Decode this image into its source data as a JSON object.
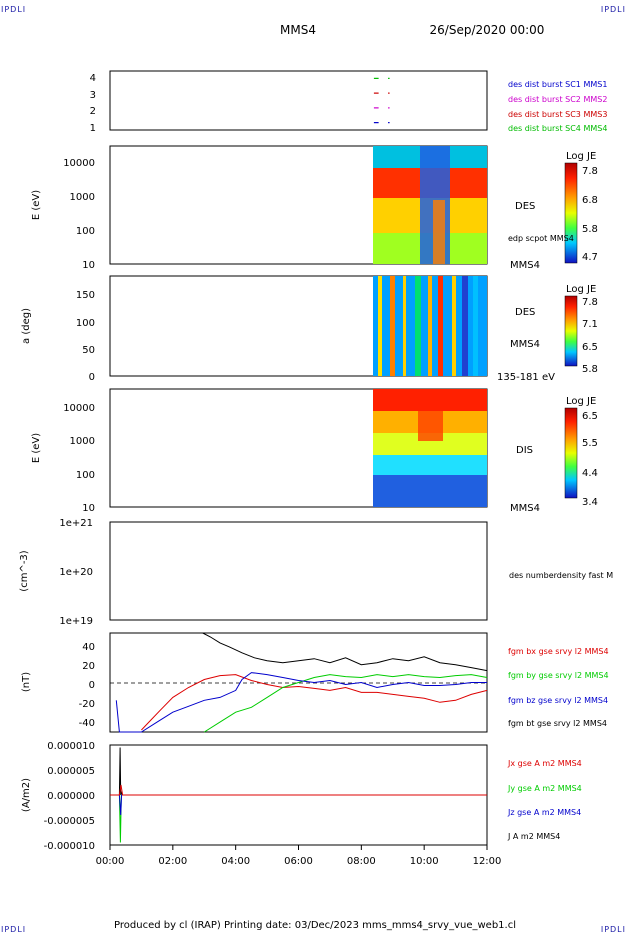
{
  "header": {
    "corner_logo": "IPDLI",
    "spacecraft": "MMS4",
    "datetime": "26/Sep/2020 00:00"
  },
  "footer": {
    "text": "Produced by cl (IRAP)   Printing date: 03/Dec/2023   mms_mms4_srvy_vue_web1.cl"
  },
  "x_axis": {
    "range_hours": [
      0,
      12
    ],
    "tick_labels": [
      "00:00",
      "02:00",
      "04:00",
      "06:00",
      "08:00",
      "10:00",
      "12:00"
    ]
  },
  "panels": {
    "burst": {
      "y_ticks": [
        "4",
        "3",
        "2",
        "1"
      ],
      "legend": [
        {
          "label": "des dist burst SC1 MMS1",
          "color": "#0000cc"
        },
        {
          "label": "des dist burst SC2 MMS2",
          "color": "#cc00cc"
        },
        {
          "label": "des dist burst SC3 MMS3",
          "color": "#cc0000"
        },
        {
          "label": "des dist burst SC4 MMS4",
          "color": "#00bb00"
        }
      ]
    },
    "des_energy": {
      "ylabel": "E (eV)",
      "y_ticks": [
        "10000",
        "1000",
        "100",
        "10"
      ],
      "label": "DES",
      "label2": "edp scpot MMS4",
      "label3": "MMS4",
      "colorbar": {
        "title": "Log JE",
        "ticks": [
          "7.8",
          "6.8",
          "5.8",
          "4.7"
        ]
      }
    },
    "des_pitch": {
      "ylabel": "a (deg)",
      "y_ticks": [
        "150",
        "100",
        "50",
        "0"
      ],
      "label": "DES",
      "label2": "MMS4",
      "label3": "135-181 eV",
      "colorbar": {
        "title": "Log JE",
        "ticks": [
          "7.8",
          "7.1",
          "6.5",
          "5.8"
        ]
      }
    },
    "dis_energy": {
      "ylabel": "E (eV)",
      "y_ticks": [
        "10000",
        "1000",
        "100",
        "10"
      ],
      "label": "DIS",
      "label2": "MMS4",
      "colorbar": {
        "title": "Log JE",
        "ticks": [
          "6.5",
          "5.5",
          "4.4",
          "3.4"
        ]
      }
    },
    "density": {
      "ylabel": "(cm^-3)",
      "y_ticks": [
        "1e+21",
        "1e+20",
        "1e+19"
      ],
      "legend": [
        {
          "label": "des numberdensity fast M",
          "color": "#000000"
        }
      ]
    },
    "bfield": {
      "ylabel": "(nT)",
      "y_ticks": [
        "40",
        "20",
        "0",
        "-20",
        "-40"
      ],
      "legend": [
        {
          "label": "fgm bx gse srvy l2 MMS4",
          "color": "#dd0000"
        },
        {
          "label": "fgm by gse srvy l2 MMS4",
          "color": "#00cc00"
        },
        {
          "label": "fgm bz gse srvy l2 MMS4",
          "color": "#0000cc"
        },
        {
          "label": "fgm bt gse srvy l2 MMS4",
          "color": "#000000"
        }
      ]
    },
    "current": {
      "ylabel": "(A/m2)",
      "y_ticks": [
        "0.000010",
        "0.000005",
        "0.000000",
        "-0.000005",
        "-0.000010"
      ],
      "legend": [
        {
          "label": "Jx gse A m2 MMS4",
          "color": "#dd0000"
        },
        {
          "label": "Jy gse A m2 MMS4",
          "color": "#00cc00"
        },
        {
          "label": "Jz gse A m2 MMS4",
          "color": "#0000cc"
        },
        {
          "label": "J A m2 MMS4",
          "color": "#000000"
        }
      ]
    }
  },
  "chart_data": [
    {
      "type": "scatter",
      "title": "burst intervals",
      "x_units": "hours",
      "ylim": [
        0.5,
        4.5
      ],
      "series": [
        {
          "name": "des dist burst SC4 MMS4",
          "y": 4,
          "segments": [
            [
              8.4,
              8.55
            ],
            [
              8.85,
              8.9
            ]
          ],
          "color": "#00bb00"
        },
        {
          "name": "des dist burst SC3 MMS3",
          "y": 3,
          "segments": [
            [
              8.4,
              8.55
            ],
            [
              8.85,
              8.9
            ]
          ],
          "color": "#cc0000"
        },
        {
          "name": "des dist burst SC2 MMS2",
          "y": 2,
          "segments": [
            [
              8.4,
              8.55
            ],
            [
              8.85,
              8.9
            ]
          ],
          "color": "#cc00cc"
        },
        {
          "name": "des dist burst SC1 MMS1",
          "y": 1,
          "segments": [
            [
              8.4,
              8.55
            ],
            [
              8.85,
              8.9
            ]
          ],
          "color": "#0000cc"
        }
      ]
    },
    {
      "type": "heatmap",
      "ylabel": "E (eV)",
      "y_scale": "log",
      "ylim": [
        10,
        30000
      ],
      "data_start_hour": 8.4,
      "colorbar_title": "Log JE",
      "colorbar_range": [
        4.7,
        7.8
      ]
    },
    {
      "type": "heatmap",
      "ylabel": "a (deg)",
      "ylim": [
        0,
        180
      ],
      "data_start_hour": 8.4,
      "colorbar_title": "Log JE",
      "colorbar_range": [
        5.8,
        7.8
      ]
    },
    {
      "type": "heatmap",
      "ylabel": "E (eV)",
      "y_scale": "log",
      "ylim": [
        10,
        30000
      ],
      "data_start_hour": 8.4,
      "colorbar_title": "Log JE",
      "colorbar_range": [
        3.4,
        6.5
      ]
    },
    {
      "type": "line",
      "ylabel": "(cm^-3)",
      "y_scale": "log",
      "ylim": [
        1e+19,
        1e+21
      ],
      "series": []
    },
    {
      "type": "line",
      "ylabel": "(nT)",
      "ylim": [
        -50,
        50
      ],
      "x_units": "hours",
      "series": [
        {
          "name": "fgm bx gse srvy l2 MMS4",
          "color": "#dd0000",
          "x": [
            1.0,
            1.3,
            1.6,
            2.0,
            2.5,
            3.0,
            3.5,
            4.0,
            4.5,
            5.0,
            5.5,
            6.0,
            6.5,
            7.0,
            7.5,
            8.0,
            8.5,
            9.0,
            9.5,
            10.0,
            10.5,
            11.0,
            11.5,
            12.0
          ],
          "y": [
            -48,
            -38,
            -28,
            -15,
            -5,
            3,
            7,
            8,
            2,
            -2,
            -5,
            -4,
            -6,
            -8,
            -5,
            -10,
            -10,
            -12,
            -14,
            -16,
            -20,
            -18,
            -12,
            -8
          ]
        },
        {
          "name": "fgm by gse srvy l2 MMS4",
          "color": "#00cc00",
          "x": [
            3.0,
            3.5,
            4.0,
            4.5,
            5.0,
            5.5,
            6.0,
            6.5,
            7.0,
            7.5,
            8.0,
            8.5,
            9.0,
            9.5,
            10.0,
            10.5,
            11.0,
            11.5,
            12.0
          ],
          "y": [
            -50,
            -40,
            -30,
            -25,
            -15,
            -5,
            0,
            5,
            8,
            6,
            5,
            8,
            6,
            8,
            6,
            5,
            7,
            8,
            5
          ]
        },
        {
          "name": "fgm bz gse srvy l2 MMS4",
          "color": "#0000cc",
          "x": [
            0.2,
            0.3,
            0.5,
            1.0,
            1.5,
            2.0,
            2.5,
            3.0,
            3.5,
            4.0,
            4.2,
            4.5,
            5.0,
            5.5,
            6.0,
            6.5,
            7.0,
            7.5,
            8.0,
            8.5,
            9.0,
            9.5,
            10.0,
            10.5,
            11.0,
            11.5,
            12.0
          ],
          "y": [
            -18,
            -50,
            -50,
            -50,
            -40,
            -30,
            -24,
            -18,
            -15,
            -8,
            3,
            10,
            8,
            5,
            2,
            0,
            2,
            -2,
            0,
            -5,
            -2,
            0,
            -3,
            -3,
            -2,
            0,
            0
          ]
        },
        {
          "name": "fgm bt gse srvy l2 MMS4",
          "color": "#000000",
          "x": [
            2.95,
            3.2,
            3.5,
            3.8,
            4.2,
            4.6,
            5.0,
            5.5,
            6.0,
            6.5,
            7.0,
            7.5,
            8.0,
            8.5,
            9.0,
            9.5,
            10.0,
            10.5,
            11.0,
            11.5,
            12.0
          ],
          "y": [
            50,
            46,
            40,
            36,
            30,
            25,
            22,
            20,
            22,
            24,
            20,
            25,
            18,
            20,
            24,
            22,
            26,
            20,
            18,
            15,
            12
          ]
        }
      ]
    },
    {
      "type": "line",
      "ylabel": "(A/m2)",
      "ylim": [
        -1e-05,
        1e-05
      ],
      "x_units": "hours",
      "series": [
        {
          "name": "J A m2 MMS4",
          "color": "#000000",
          "x": [
            0.0,
            0.3,
            0.32,
            0.34,
            0.36,
            0.4,
            12.0
          ],
          "y": [
            0.0,
            0.0,
            9.5e-06,
            0.0,
            5e-07,
            0.0,
            0.0
          ]
        },
        {
          "name": "Jy gse A m2 MMS4",
          "color": "#00cc00",
          "x": [
            0.0,
            0.3,
            0.33,
            0.36,
            0.4,
            12.0
          ],
          "y": [
            0.0,
            0.0,
            -9.5e-06,
            0.0,
            0.0,
            0.0
          ]
        },
        {
          "name": "Jz gse A m2 MMS4",
          "color": "#0000cc",
          "x": [
            0.0,
            0.3,
            0.34,
            0.37,
            0.4,
            12.0
          ],
          "y": [
            0.0,
            0.0,
            -4e-06,
            0.0,
            0.0,
            0.0
          ]
        },
        {
          "name": "Jx gse A m2 MMS4",
          "color": "#dd0000",
          "x": [
            0.0,
            0.3,
            0.35,
            0.4,
            12.0
          ],
          "y": [
            0.0,
            0.0,
            2e-06,
            0.0,
            0.0
          ]
        }
      ]
    }
  ]
}
